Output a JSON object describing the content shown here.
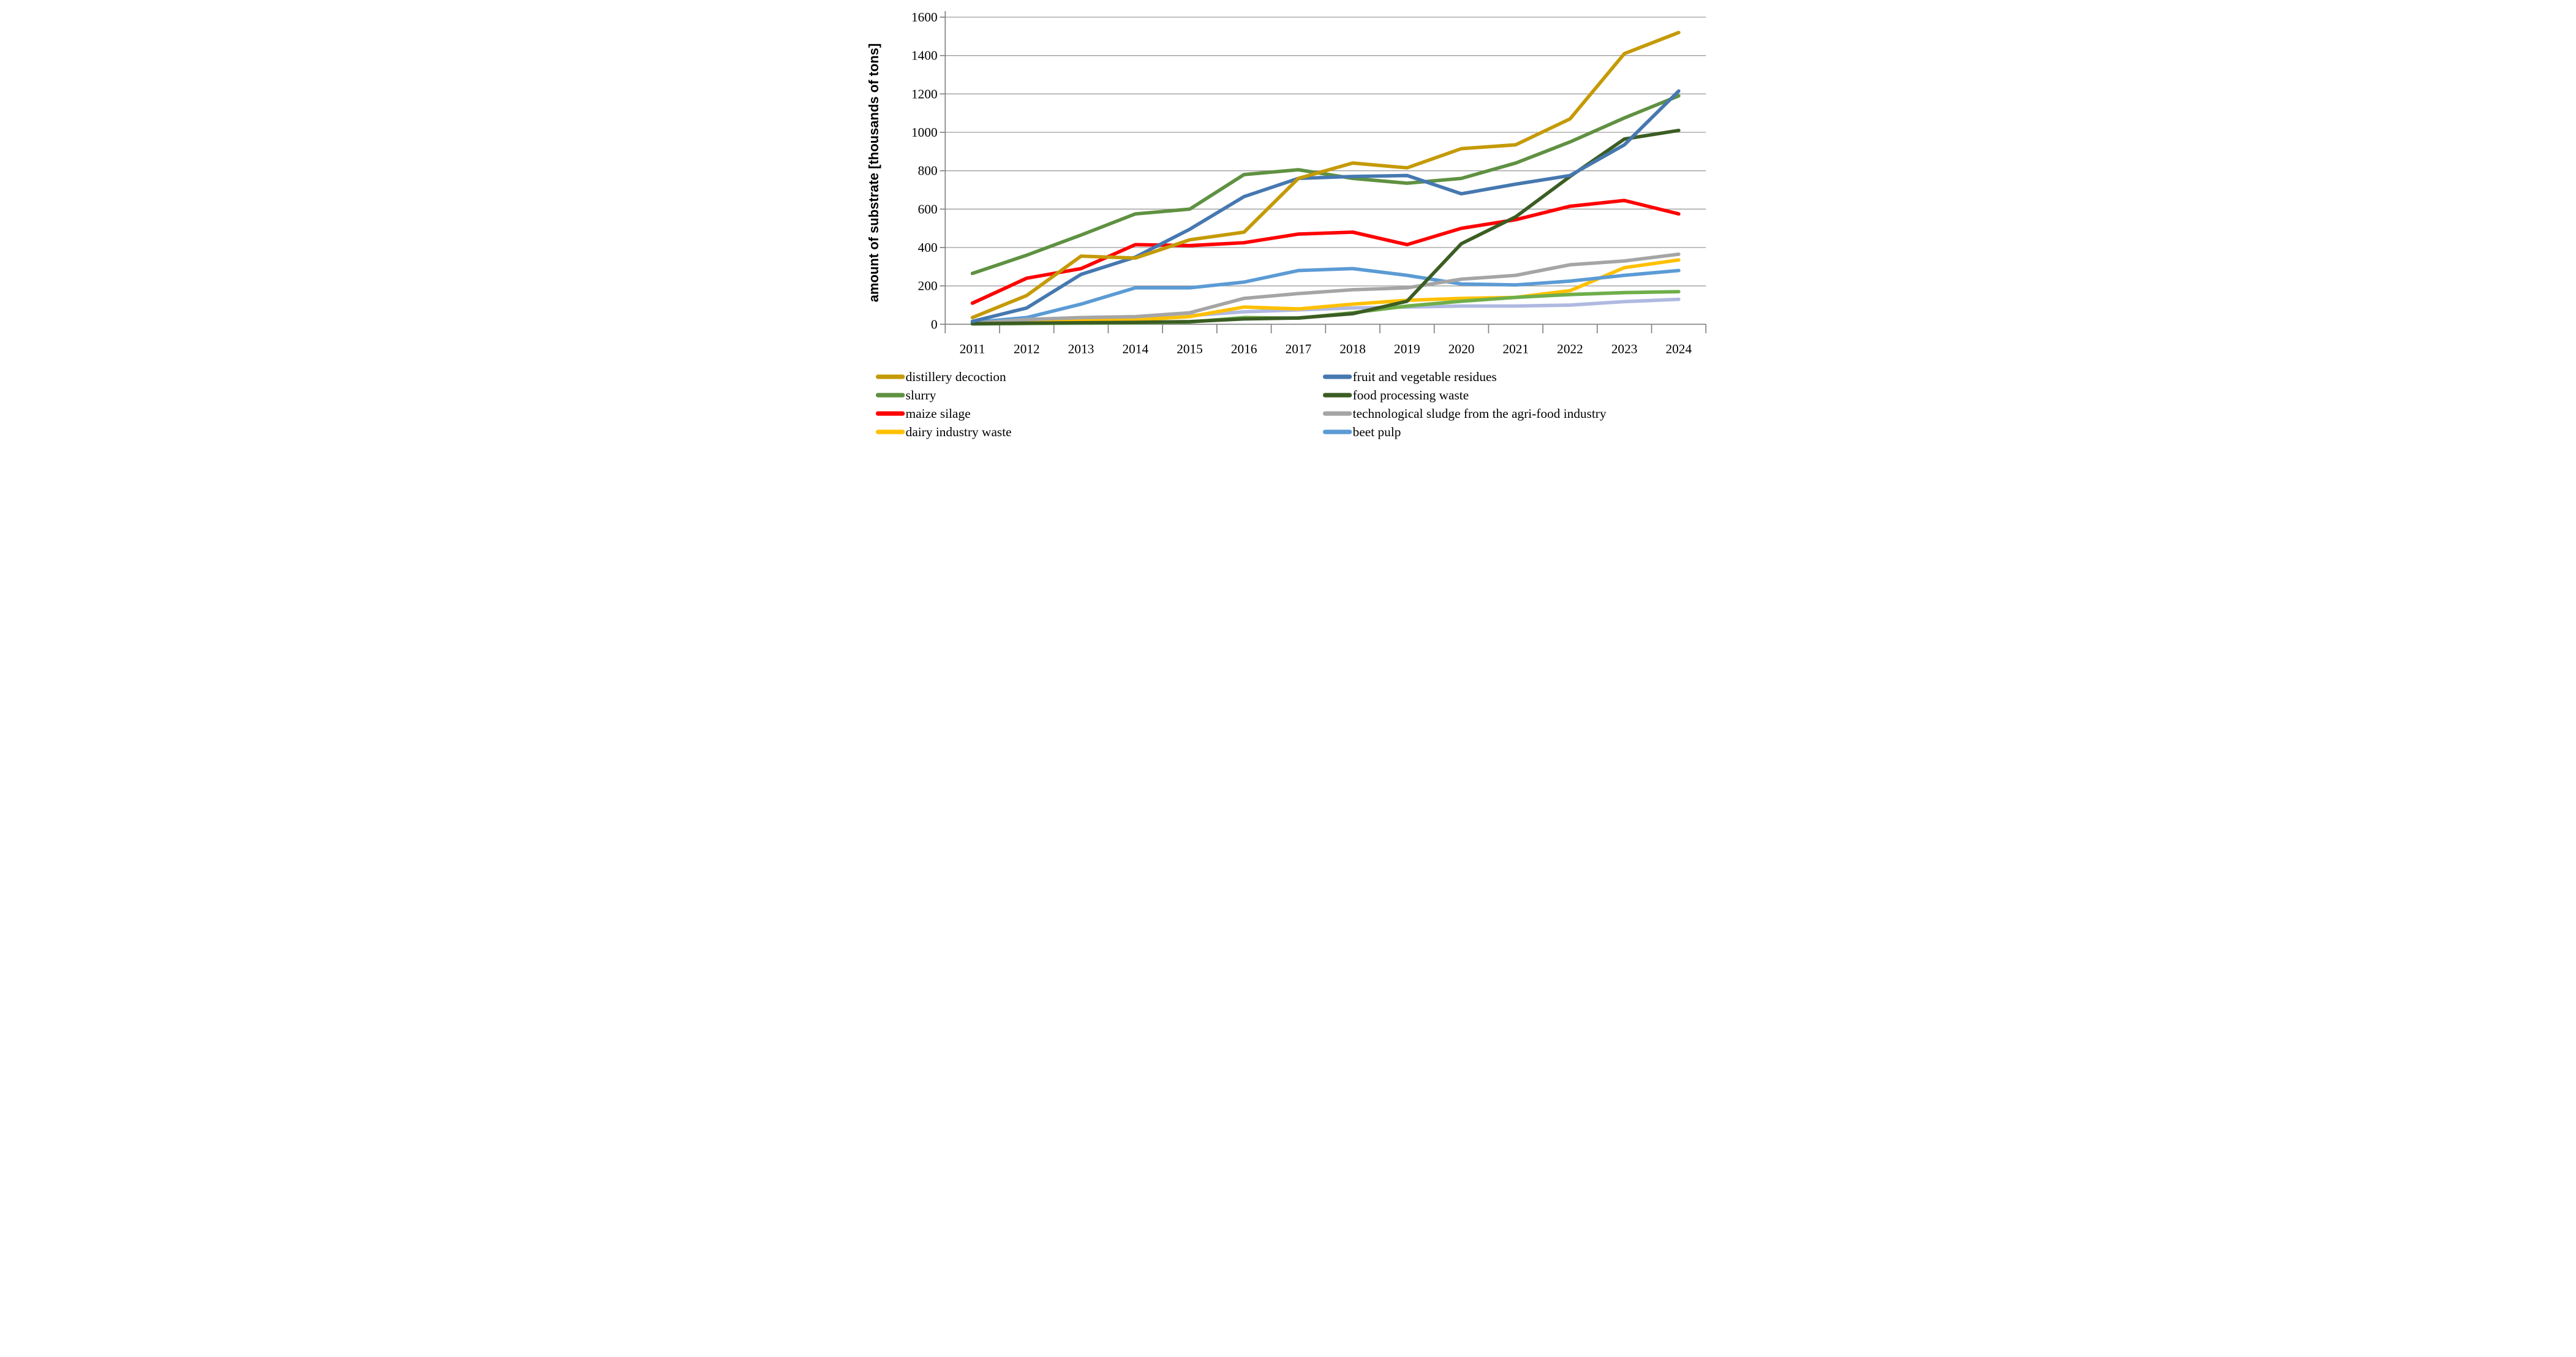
{
  "figure": {
    "background": "#ffffff",
    "text_color": "#000000",
    "gridline_color": "#9d9d9d",
    "axis_color": "#808080"
  },
  "chart_data": {
    "type": "line",
    "title": "",
    "xlabel": "",
    "ylabel": "amount of substrate [thousands of tons]",
    "ylim": [
      0,
      1600
    ],
    "ytick_step": 200,
    "yticks": [
      "0",
      "200",
      "400",
      "600",
      "800",
      "1000",
      "1200",
      "1400",
      "1600"
    ],
    "grid": true,
    "legend_position": "bottom-two-columns",
    "categories": [
      "2011",
      "2012",
      "2013",
      "2014",
      "2015",
      "2016",
      "2017",
      "2018",
      "2019",
      "2020",
      "2021",
      "2022",
      "2023",
      "2024"
    ],
    "series": [
      {
        "name": "distillery decoction",
        "color": "#C49A06",
        "in_legend": true,
        "z": 9,
        "values": [
          35,
          150,
          355,
          345,
          440,
          480,
          760,
          840,
          815,
          915,
          935,
          1070,
          1410,
          1520
        ]
      },
      {
        "name": "slurry",
        "color": "#5F9141",
        "in_legend": true,
        "z": 7,
        "values": [
          265,
          360,
          465,
          575,
          600,
          780,
          805,
          760,
          735,
          760,
          840,
          950,
          1075,
          1190
        ]
      },
      {
        "name": "maize silage",
        "color": "#FF0000",
        "in_legend": true,
        "z": 5,
        "values": [
          110,
          240,
          290,
          415,
          410,
          425,
          470,
          480,
          415,
          500,
          545,
          615,
          645,
          575
        ]
      },
      {
        "name": "dairy industry waste",
        "color": "#FFC000",
        "in_legend": true,
        "z": 1,
        "values": [
          8,
          15,
          18,
          22,
          40,
          90,
          80,
          105,
          125,
          135,
          140,
          175,
          295,
          335
        ]
      },
      {
        "name": "fruit and vegetable residues",
        "color": "#4678B0",
        "in_legend": true,
        "z": 8,
        "values": [
          15,
          85,
          260,
          350,
          495,
          665,
          760,
          770,
          775,
          680,
          730,
          775,
          935,
          1215
        ]
      },
      {
        "name": "food processing waste",
        "color": "#3B5D23",
        "in_legend": true,
        "z": 6,
        "values": [
          3,
          6,
          8,
          10,
          14,
          28,
          33,
          55,
          120,
          420,
          560,
          770,
          965,
          1010
        ]
      },
      {
        "name": "technological sludge from the agri-food industry",
        "color": "#A5A5A5",
        "in_legend": true,
        "z": 4,
        "values": [
          5,
          25,
          35,
          40,
          60,
          135,
          160,
          180,
          190,
          235,
          255,
          310,
          330,
          365
        ]
      },
      {
        "name": "beet pulp",
        "color": "#5B9BD5",
        "in_legend": true,
        "z": 3,
        "values": [
          10,
          35,
          105,
          190,
          190,
          220,
          280,
          290,
          255,
          210,
          205,
          225,
          255,
          280
        ]
      },
      {
        "name": "",
        "color": "#6FAE4A",
        "in_legend": false,
        "z": 2,
        "values": [
          2,
          4,
          6,
          8,
          12,
          35,
          32,
          60,
          95,
          120,
          140,
          155,
          165,
          170
        ]
      },
      {
        "name": "",
        "color": "#AFB9E1",
        "in_legend": false,
        "z": 0,
        "values": [
          10,
          22,
          28,
          35,
          45,
          65,
          75,
          85,
          90,
          95,
          95,
          100,
          118,
          130
        ]
      }
    ],
    "legend": {
      "left_column": [
        "distillery decoction",
        "slurry",
        "maize silage",
        "dairy industry waste"
      ],
      "right_column": [
        "fruit and vegetable residues",
        "food processing waste",
        "technological sludge from the agri-food industry",
        "beet pulp"
      ]
    }
  }
}
